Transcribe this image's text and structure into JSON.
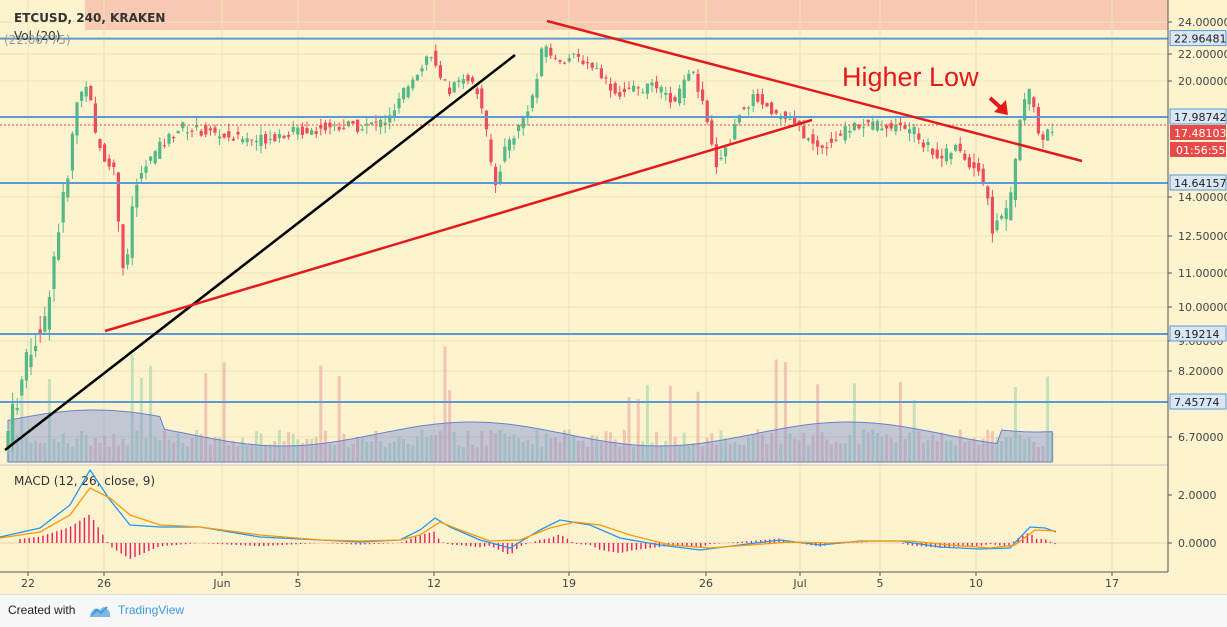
{
  "chart_data": {
    "type": "candlestick",
    "symbol": "ETCUSD, 240, KRAKEN",
    "volume_label": "Vol (20)",
    "volume_value": "(22.00775)",
    "macd_label": "MACD (12, 26, close, 9)",
    "annotation": "Higher Low",
    "y_ticks": [
      "24.00000",
      "22.00000",
      "20.00000",
      "14.00000",
      "12.50000",
      "11.00000",
      "10.00000",
      "9.00000",
      "8.20000",
      "6.70000"
    ],
    "macd_ticks": [
      "2.0000",
      "0.0000"
    ],
    "x_ticks": [
      "22",
      "26",
      "Jun",
      "5",
      "12",
      "19",
      "26",
      "Jul",
      "5",
      "10",
      "17"
    ],
    "horizontal_levels": [
      {
        "value": 22.96481,
        "label": "22.96481"
      },
      {
        "value": 17.98742,
        "label": "17.98742"
      },
      {
        "value": 14.64157,
        "label": "14.64157"
      },
      {
        "value": 9.19214,
        "label": "9.19214"
      },
      {
        "value": 7.45774,
        "label": "7.45774"
      }
    ],
    "last_price": "17.48103",
    "countdown": "01:56:55",
    "colors": {
      "background": "#fdf3cf",
      "up": "#53b987",
      "down": "#eb4d5c",
      "level_line": "#5b9bd5",
      "trend_red": "#e31a1c",
      "trend_black": "#000000",
      "resistance_zone": "#f9c9b4",
      "price_label": "#e84a4a",
      "macd_line": "#2196f3",
      "signal_line": "#ff9800",
      "histogram": "#e91e63"
    }
  },
  "footer": {
    "created_with": "Created with",
    "brand": "TradingView"
  }
}
